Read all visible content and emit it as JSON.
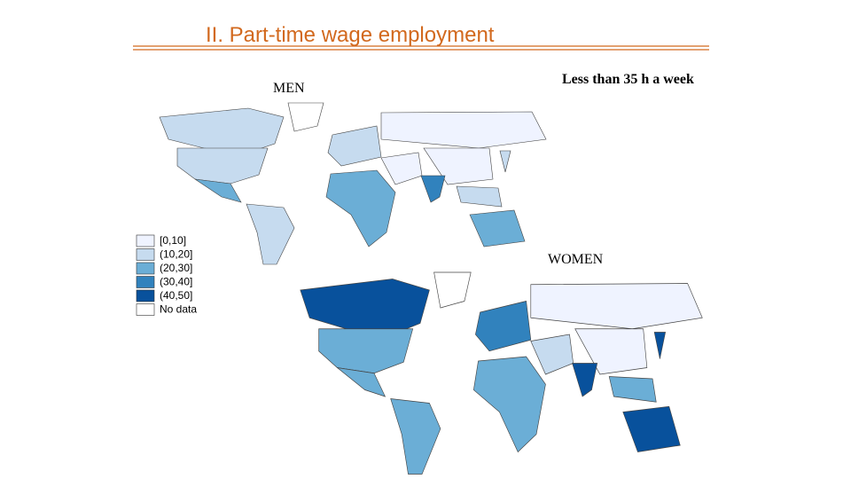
{
  "header": {
    "title": "II. Part-time wage employment",
    "subtitle": "Less than 35 h a week"
  },
  "maps": [
    {
      "label": "MEN"
    },
    {
      "label": "WOMEN"
    }
  ],
  "legend": [
    {
      "label": "[0,10]",
      "color": "#eff3ff"
    },
    {
      "label": "(10,20]",
      "color": "#c6dbef"
    },
    {
      "label": "(20,30]",
      "color": "#6baed6"
    },
    {
      "label": "(30,40]",
      "color": "#3182bd"
    },
    {
      "label": "(40,50]",
      "color": "#08519c"
    },
    {
      "label": "No data",
      "color": "#ffffff"
    }
  ]
}
